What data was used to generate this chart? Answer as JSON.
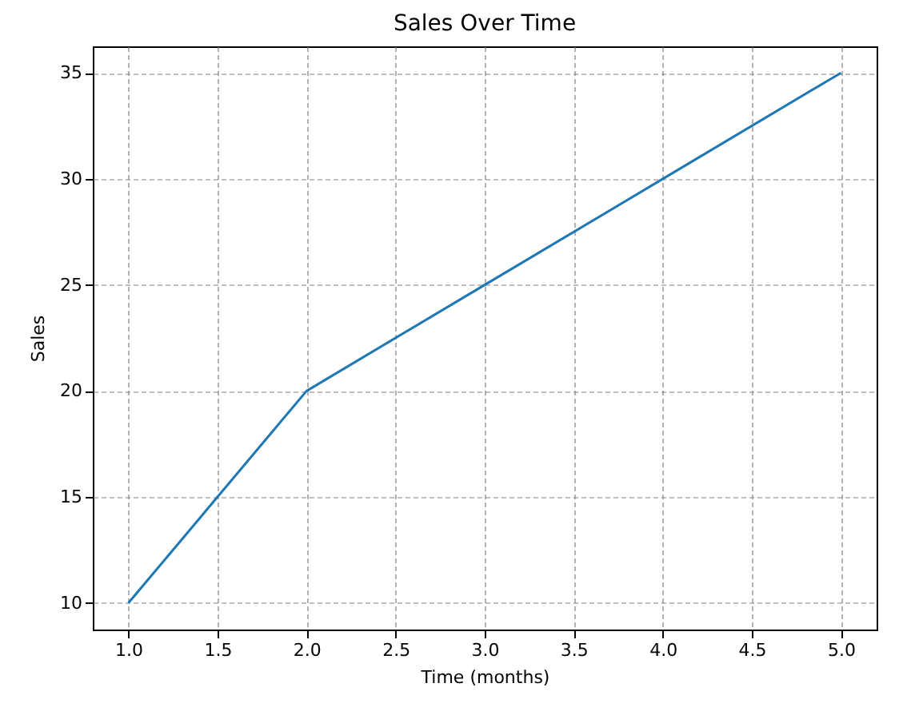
{
  "chart_data": {
    "type": "line",
    "title": "Sales Over Time",
    "xlabel": "Time (months)",
    "ylabel": "Sales",
    "x": [
      1,
      2,
      3,
      4,
      5
    ],
    "series": [
      {
        "color": "#1f77b4",
        "values": [
          10,
          20,
          25,
          30,
          35
        ]
      }
    ],
    "xlim": [
      0.8,
      5.2
    ],
    "ylim": [
      8.75,
      36.25
    ],
    "xticks": [
      {
        "value": 1,
        "label": "1.0"
      },
      {
        "value": 1.5,
        "label": "1.5"
      },
      {
        "value": 2,
        "label": "2.0"
      },
      {
        "value": 2.5,
        "label": "2.5"
      },
      {
        "value": 3,
        "label": "3.0"
      },
      {
        "value": 3.5,
        "label": "3.5"
      },
      {
        "value": 4,
        "label": "4.0"
      },
      {
        "value": 4.5,
        "label": "4.5"
      },
      {
        "value": 5,
        "label": "5.0"
      }
    ],
    "yticks": [
      10,
      15,
      20,
      25,
      30,
      35
    ],
    "grid": true,
    "line_style": "solid",
    "marker": "none"
  }
}
